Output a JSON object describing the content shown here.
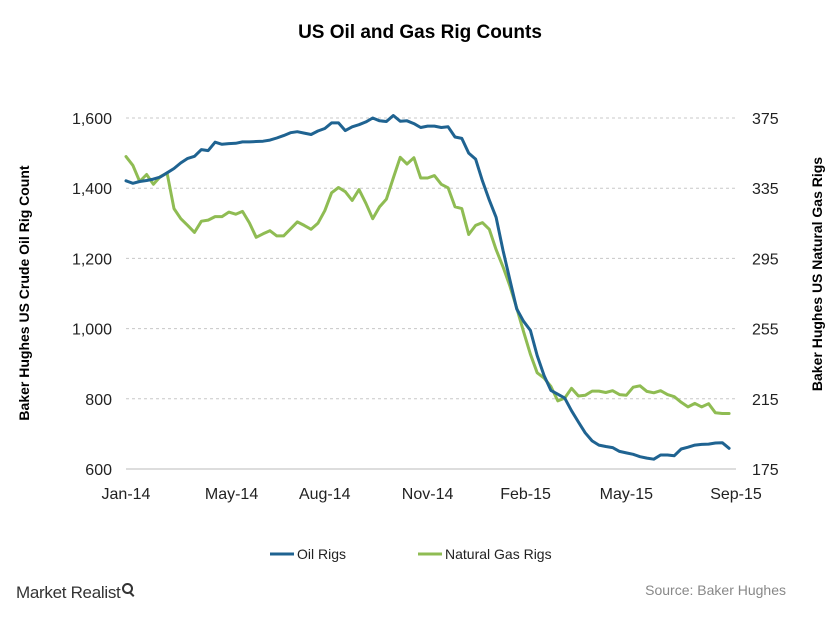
{
  "chart_data": {
    "type": "line",
    "title": "US Oil and Gas Rig Counts",
    "ylabel_left": "Baker Hughes US Crude Oil Rig Count",
    "ylabel_right": "Baker Hughes US Natural Gas Rigs",
    "ylim_left": [
      600,
      1600
    ],
    "ylim_right": [
      175,
      375
    ],
    "yticks_left": [
      "1,600",
      "1,400",
      "1,200",
      "1,000",
      "800",
      "600"
    ],
    "yticks_left_values": [
      1600,
      1400,
      1200,
      1000,
      800,
      600
    ],
    "yticks_right": [
      "375",
      "335",
      "295",
      "255",
      "215",
      "175"
    ],
    "yticks_right_values": [
      375,
      335,
      295,
      255,
      215,
      175
    ],
    "xticks": [
      "Jan-14",
      "May-14",
      "Aug-14",
      "Nov-14",
      "Feb-15",
      "May-15",
      "Sep-15"
    ],
    "week_index_range": [
      0,
      89
    ],
    "xtick_week_index": [
      0,
      15.4,
      29,
      44,
      58.3,
      73,
      89
    ],
    "grid": true,
    "legend_position": "bottom",
    "series": [
      {
        "name": "Oil Rigs",
        "color": "#1f6391",
        "axis": "left",
        "values": [
          1421,
          1414,
          1419,
          1422,
          1426,
          1432,
          1444,
          1456,
          1472,
          1485,
          1491,
          1510,
          1507,
          1531,
          1525,
          1527,
          1528,
          1532,
          1532,
          1533,
          1534,
          1537,
          1543,
          1550,
          1558,
          1561,
          1557,
          1553,
          1563,
          1570,
          1586,
          1586,
          1564,
          1575,
          1581,
          1589,
          1600,
          1592,
          1590,
          1607,
          1591,
          1592,
          1584,
          1573,
          1577,
          1577,
          1573,
          1575,
          1546,
          1542,
          1500,
          1483,
          1421,
          1366,
          1317,
          1223,
          1140,
          1056,
          1021,
          995,
          923,
          866,
          824,
          813,
          802,
          766,
          734,
          703,
          680,
          668,
          664,
          661,
          650,
          646,
          642,
          635,
          631,
          628,
          640,
          640,
          638,
          657,
          662,
          668,
          670,
          671,
          674,
          675,
          659
        ]
      },
      {
        "name": "Natural Gas Rigs",
        "color": "#8fbc53",
        "axis": "left",
        "values": [
          1490,
          1465,
          1419,
          1439,
          1411,
          1433,
          1443,
          1342,
          1313,
          1294,
          1274,
          1306,
          1309,
          1319,
          1319,
          1332,
          1326,
          1334,
          1301,
          1260,
          1270,
          1279,
          1264,
          1264,
          1284,
          1304,
          1294,
          1283,
          1300,
          1336,
          1387,
          1402,
          1390,
          1365,
          1396,
          1357,
          1313,
          1347,
          1369,
          1429,
          1488,
          1469,
          1487,
          1429,
          1429,
          1436,
          1411,
          1401,
          1347,
          1342,
          1268,
          1294,
          1302,
          1283,
          1225,
          1176,
          1122,
          1059,
          992,
          927,
          874,
          859,
          835,
          794,
          802,
          830,
          808,
          810,
          822,
          822,
          818,
          823,
          812,
          810,
          833,
          837,
          821,
          817,
          823,
          812,
          806,
          790,
          777,
          787,
          777,
          786,
          760,
          758,
          758
        ]
      }
    ],
    "source": "Source: Baker Hughes",
    "brand": "Market Realist"
  }
}
